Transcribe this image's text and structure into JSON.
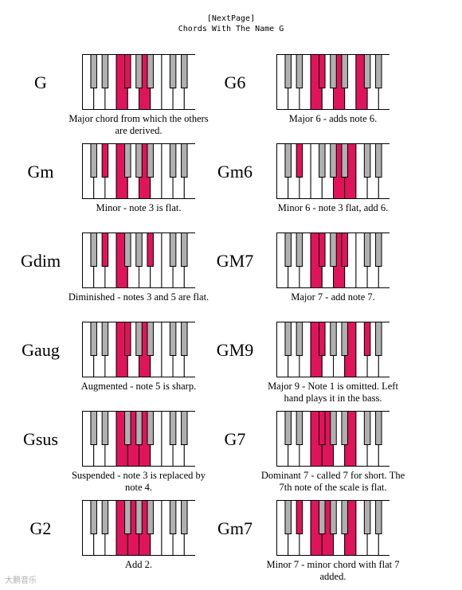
{
  "header": {
    "nav": "[NextPage]",
    "title": "Chords With The Name G"
  },
  "colors": {
    "highlight": "#e0145a",
    "black_key": "#b0b0b0",
    "outline": "#000000"
  },
  "chords": [
    {
      "name": "G",
      "caption": "Major chord from which the others are derived.",
      "white": [
        3,
        5
      ],
      "black": [
        2
      ]
    },
    {
      "name": "G6",
      "caption": "Major 6 - adds note 6.",
      "white": [
        3,
        5,
        7
      ],
      "black": [
        2
      ]
    },
    {
      "name": "Gm",
      "caption": "Minor - note 3 is flat.",
      "white": [
        3,
        5
      ],
      "black": [
        1
      ]
    },
    {
      "name": "Gm6",
      "caption": "Minor 6 - note 3 flat, add 6.",
      "white": [
        5,
        6
      ],
      "black": [
        1
      ]
    },
    {
      "name": "Gdim",
      "caption": "Diminished - notes 3 and 5 are flat.",
      "white": [
        3
      ],
      "black": [
        1,
        4
      ]
    },
    {
      "name": "GM7",
      "caption": "Major 7 - add note 7.",
      "white": [
        3,
        5
      ],
      "black": [
        2,
        4
      ]
    },
    {
      "name": "Gaug",
      "caption": "Augmented - note 5 is sharp.",
      "white": [
        3,
        5
      ],
      "black": [
        2
      ]
    },
    {
      "name": "GM9",
      "caption": "Major 9 - Note 1 is omitted. Left hand plays it in the bass.",
      "white": [
        3,
        6
      ],
      "black": [
        2,
        5
      ]
    },
    {
      "name": "Gsus",
      "caption": "Suspended - note 3 is replaced by note 4.",
      "white": [
        3,
        4,
        5
      ],
      "black": []
    },
    {
      "name": "G7",
      "caption": "Dominant 7 - called 7 for short. The 7th note of the scale is flat.",
      "white": [
        3,
        4,
        6
      ],
      "black": [
        2
      ]
    },
    {
      "name": "G2",
      "caption": "Add 2.",
      "white": [
        3,
        4,
        5
      ],
      "black": []
    },
    {
      "name": "Gm7",
      "caption": "Minor 7 - minor chord with flat 7 added.",
      "white": [
        3,
        4,
        6
      ],
      "black": [
        1
      ]
    }
  ],
  "watermark": "大鹏音乐"
}
